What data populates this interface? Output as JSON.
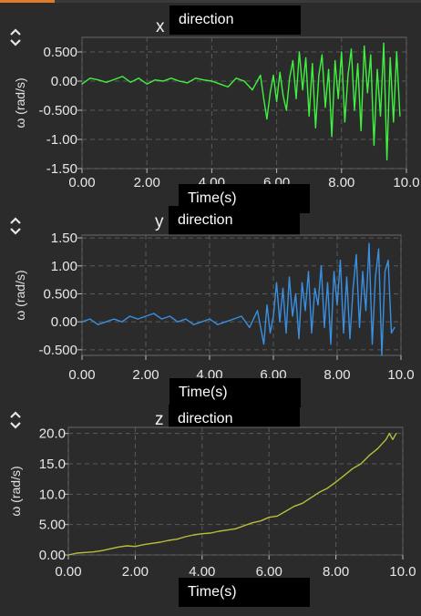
{
  "chart_data": [
    {
      "type": "line",
      "title_letter": "x",
      "title": "direction",
      "xlabel": "Time(s)",
      "ylabel": "ω (rad/s)",
      "xlim": [
        0,
        10
      ],
      "ylim": [
        -1.5,
        0.75
      ],
      "grid": true,
      "color": "#3ff23f",
      "xticks": [
        "0.00",
        "2.00",
        "4.00",
        "6.00",
        "8.00",
        "10.0"
      ],
      "yticks": [
        "0.500",
        "0.00",
        "-0.500",
        "-1.00",
        "-1.50"
      ],
      "series": [
        {
          "x": [
            0.0,
            0.25,
            0.5,
            0.75,
            1.0,
            1.25,
            1.5,
            1.75,
            2.0,
            2.25,
            2.5,
            2.75,
            3.0,
            3.25,
            3.5,
            3.75,
            4.0,
            4.25,
            4.5,
            4.75,
            5.0,
            5.25,
            5.5,
            5.6,
            5.7,
            5.8,
            5.9,
            6.0,
            6.1,
            6.2,
            6.3,
            6.4,
            6.5,
            6.6,
            6.7,
            6.8,
            6.9,
            7.0,
            7.1,
            7.2,
            7.3,
            7.4,
            7.5,
            7.6,
            7.7,
            7.8,
            7.9,
            8.0,
            8.1,
            8.2,
            8.3,
            8.4,
            8.5,
            8.6,
            8.7,
            8.8,
            8.9,
            9.0,
            9.1,
            9.2,
            9.3,
            9.4,
            9.5,
            9.6,
            9.7,
            9.8
          ],
          "y": [
            -0.05,
            0.05,
            0.02,
            -0.02,
            0.03,
            0.08,
            -0.02,
            0.05,
            -0.05,
            0.02,
            0.0,
            0.05,
            0.0,
            -0.03,
            0.05,
            0.02,
            0.0,
            -0.05,
            -0.1,
            0.05,
            0.0,
            -0.15,
            0.1,
            -0.3,
            -0.65,
            -0.2,
            0.1,
            -0.35,
            0.15,
            -0.25,
            -0.5,
            0.05,
            0.35,
            -0.3,
            0.5,
            -0.15,
            0.4,
            -0.6,
            0.3,
            -0.8,
            0.1,
            0.45,
            -0.45,
            0.2,
            -0.95,
            0.35,
            -0.3,
            0.5,
            -0.7,
            0.1,
            0.55,
            -0.5,
            0.3,
            -0.85,
            0.6,
            -0.2,
            0.45,
            -1.1,
            0.2,
            -0.6,
            0.65,
            -1.35,
            0.4,
            -0.7,
            0.5,
            -0.6
          ]
        }
      ]
    },
    {
      "type": "line",
      "title_letter": "y",
      "title": "direction",
      "xlabel": "Time(s)",
      "ylabel": "ω (rad/s)",
      "xlim": [
        0,
        10
      ],
      "ylim": [
        -0.6,
        1.55
      ],
      "grid": true,
      "color": "#3a8fe0",
      "xticks": [
        "0.00",
        "2.00",
        "4.00",
        "6.00",
        "8.00",
        "10.0"
      ],
      "yticks": [
        "1.50",
        "1.00",
        "0.500",
        "0.00",
        "-0.500"
      ],
      "series": [
        {
          "x": [
            0.0,
            0.25,
            0.5,
            0.75,
            1.0,
            1.25,
            1.5,
            1.75,
            2.0,
            2.25,
            2.5,
            2.75,
            3.0,
            3.25,
            3.5,
            3.75,
            4.0,
            4.25,
            4.5,
            4.75,
            5.0,
            5.25,
            5.5,
            5.6,
            5.7,
            5.8,
            5.9,
            6.0,
            6.1,
            6.2,
            6.3,
            6.4,
            6.5,
            6.6,
            6.7,
            6.8,
            6.9,
            7.0,
            7.1,
            7.2,
            7.3,
            7.4,
            7.5,
            7.6,
            7.7,
            7.8,
            7.9,
            8.0,
            8.1,
            8.2,
            8.3,
            8.4,
            8.5,
            8.6,
            8.7,
            8.8,
            8.9,
            9.0,
            9.1,
            9.2,
            9.3,
            9.4,
            9.5,
            9.6,
            9.7,
            9.8
          ],
          "y": [
            0.0,
            0.05,
            -0.05,
            0.0,
            0.05,
            0.0,
            0.1,
            0.05,
            0.1,
            0.15,
            0.05,
            0.1,
            0.0,
            0.05,
            -0.05,
            0.0,
            0.05,
            -0.05,
            0.0,
            0.05,
            0.1,
            -0.1,
            0.2,
            -0.1,
            -0.4,
            0.3,
            -0.2,
            0.1,
            0.7,
            0.0,
            0.6,
            -0.2,
            0.8,
            0.1,
            0.5,
            -0.3,
            0.7,
            0.2,
            0.9,
            -0.2,
            0.6,
            0.3,
            1.0,
            -0.1,
            0.7,
            -0.4,
            0.9,
            0.3,
            1.1,
            -0.2,
            0.8,
            -0.3,
            0.6,
            1.2,
            -0.1,
            0.9,
            0.2,
            1.4,
            -0.4,
            0.8,
            1.3,
            -0.6,
            0.9,
            1.1,
            -0.2,
            -0.1
          ]
        }
      ]
    },
    {
      "type": "line",
      "title_letter": "z",
      "title": "direction",
      "xlabel": "Time(s)",
      "ylabel": "ω (rad/s)",
      "xlim": [
        0,
        10
      ],
      "ylim": [
        0,
        21
      ],
      "grid": true,
      "color": "#b8bf3a",
      "xticks": [
        "0.00",
        "2.00",
        "4.00",
        "6.00",
        "8.00",
        "10.0"
      ],
      "yticks": [
        "20.0",
        "15.0",
        "10.0",
        "5.00",
        "0.00"
      ],
      "series": [
        {
          "x": [
            0.0,
            0.25,
            0.5,
            0.75,
            1.0,
            1.25,
            1.5,
            1.75,
            2.0,
            2.25,
            2.5,
            2.75,
            3.0,
            3.25,
            3.5,
            3.75,
            4.0,
            4.25,
            4.5,
            4.75,
            5.0,
            5.25,
            5.5,
            5.75,
            6.0,
            6.25,
            6.5,
            6.75,
            7.0,
            7.25,
            7.5,
            7.75,
            8.0,
            8.25,
            8.5,
            8.75,
            9.0,
            9.25,
            9.5,
            9.6,
            9.7,
            9.8
          ],
          "y": [
            0.0,
            0.3,
            0.4,
            0.5,
            0.7,
            1.0,
            1.3,
            1.5,
            1.4,
            1.7,
            1.9,
            2.1,
            2.4,
            2.6,
            3.0,
            3.3,
            3.5,
            3.6,
            3.9,
            4.1,
            4.3,
            4.8,
            5.3,
            5.6,
            6.2,
            6.4,
            7.2,
            8.0,
            8.5,
            9.4,
            10.3,
            11.0,
            12.0,
            13.1,
            14.2,
            15.0,
            16.4,
            17.5,
            19.0,
            20.0,
            19.0,
            20.0
          ]
        }
      ]
    }
  ]
}
